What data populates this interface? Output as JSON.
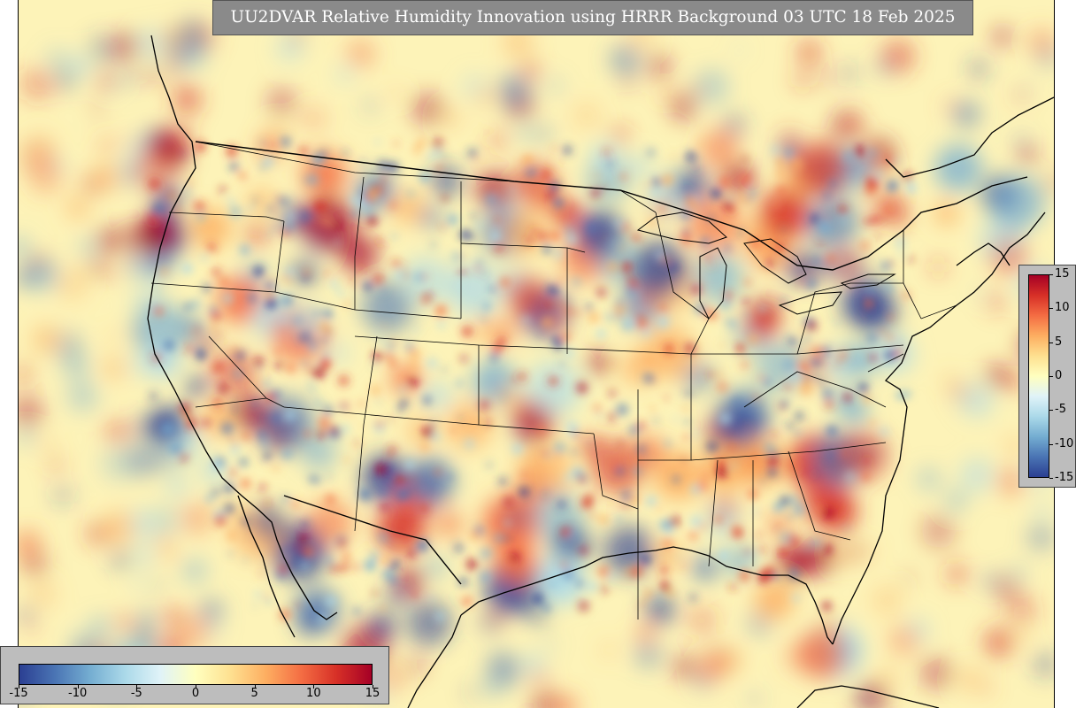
{
  "title": "UU2DVAR Relative Humidity Innovation using HRRR Background 03 UTC 18 Feb 2025",
  "colorbar": {
    "min": -15,
    "max": 15,
    "bottom_ticks": [
      "-15",
      "-10",
      "-5",
      "0",
      "5",
      "10",
      "15"
    ],
    "right_ticks": [
      "15",
      "10",
      "5",
      "0",
      "-5",
      "-10",
      "-15"
    ],
    "colors": [
      "#2b3f92",
      "#4a74b4",
      "#74add1",
      "#abd9e9",
      "#e0f3f8",
      "#ffffbf",
      "#fee090",
      "#fdae61",
      "#f46d43",
      "#d73027",
      "#a50026"
    ]
  },
  "map": {
    "background_color": "#fdf3b8",
    "features": [
      "coastlines",
      "country-borders",
      "state-borders",
      "great-lakes"
    ]
  }
}
